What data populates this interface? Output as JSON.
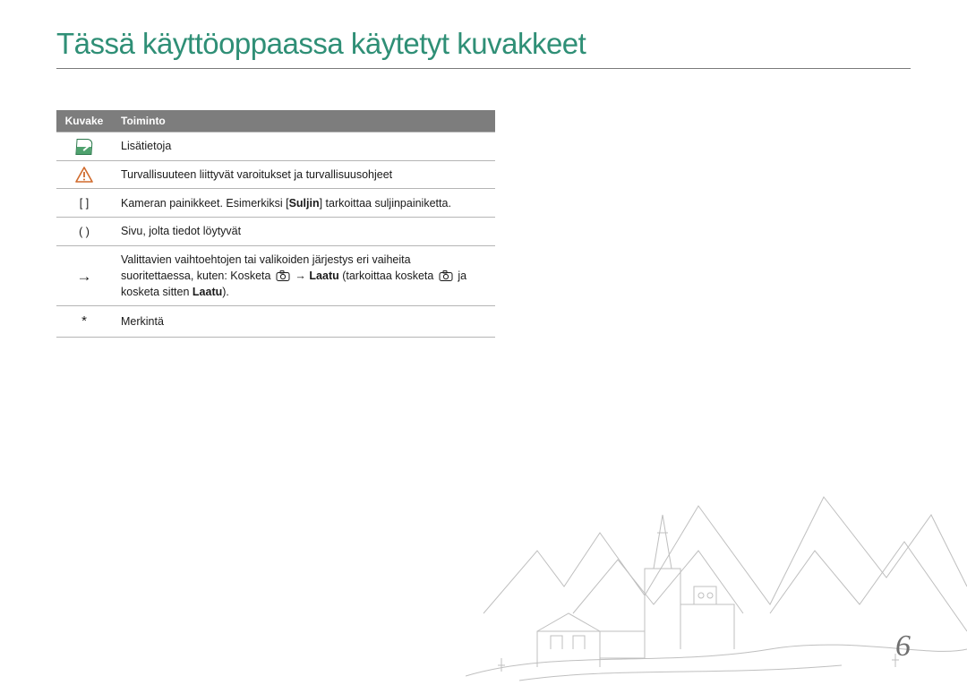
{
  "colors": {
    "accent": "#2f8f76",
    "header_bg": "#7d7d7d",
    "text": "#1a1a1a",
    "rule": "#7a7a7a",
    "table_border": "#b5b5b5",
    "warn": "#d06a2c",
    "info_green": "#4fa26e",
    "info_green_dark": "#2e7a4e",
    "illus_stroke": "#bfbfbf",
    "page_num": "#6f6f6f"
  },
  "title": "Tässä käyttöoppaassa käytetyt kuvakkeet",
  "table": {
    "headers": {
      "icon": "Kuvake",
      "func": "Toiminto"
    },
    "rows": [
      {
        "icon_name": "info-icon",
        "text": "Lisätietoja"
      },
      {
        "icon_name": "warning-icon",
        "text": "Turvallisuuteen liittyvät varoitukset ja turvallisuusohjeet"
      },
      {
        "icon_name": "brackets-icon",
        "icon_text": "[     ]",
        "text_pre": "Kameran painikkeet. Esimerkiksi [",
        "bold1": "Suljin",
        "text_mid": "] tarkoittaa suljinpainiketta."
      },
      {
        "icon_name": "parens-icon",
        "icon_text": "(     )",
        "text": "Sivu, jolta tiedot löytyvät"
      },
      {
        "icon_name": "arrow-icon",
        "icon_text": "→",
        "text_pre": "Valittavien vaihtoehtojen tai valikoiden järjestys eri vaiheita suoritettaessa, kuten: Kosketa ",
        "text_mid": " → ",
        "bold1": "Laatu",
        "text_mid2": " (tarkoittaa kosketa ",
        "text_post": " ja kosketa sitten ",
        "bold2": "Laatu",
        "text_end": ")."
      },
      {
        "icon_name": "asterisk-icon",
        "icon_text": "*",
        "text": "Merkintä"
      }
    ]
  },
  "page_number": "6"
}
